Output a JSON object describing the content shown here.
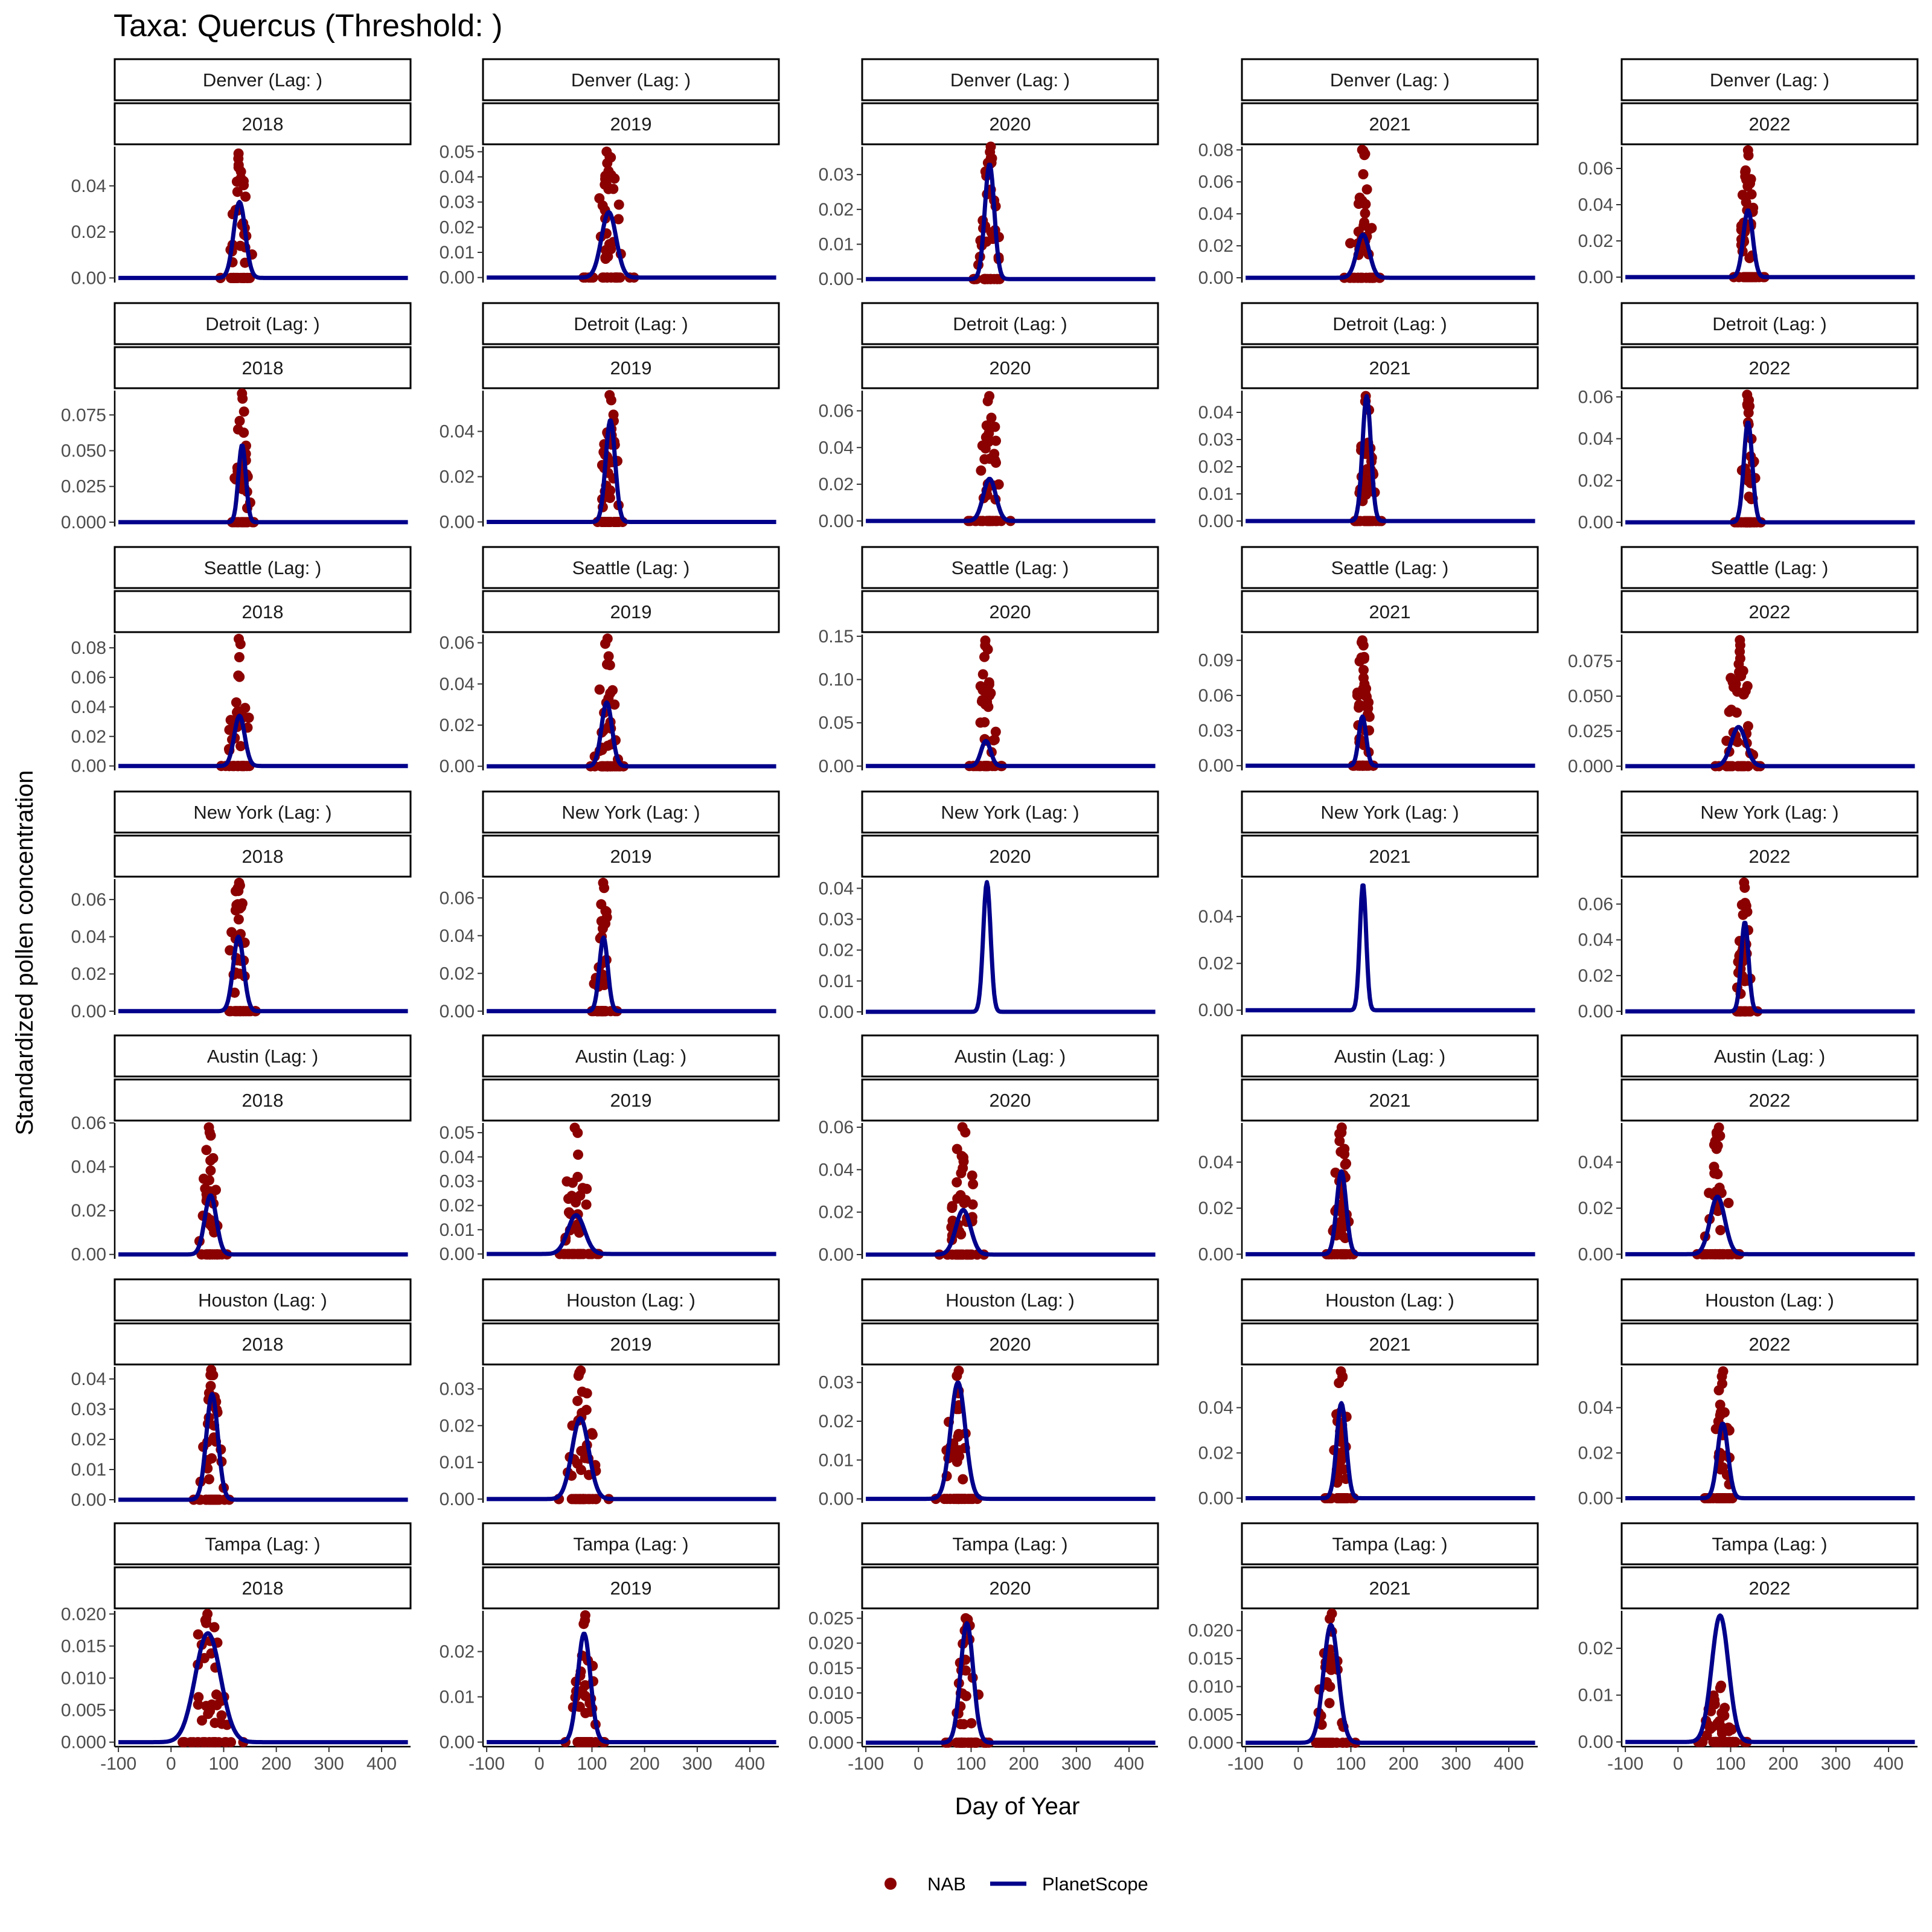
{
  "title": "Taxa: Quercus (Threshold:  )",
  "x_axis_title": "Day of Year",
  "y_axis_title": "Standardized pollen concentration",
  "legend": {
    "nab": "NAB",
    "planetscope": "PlanetScope"
  },
  "colors": {
    "nab": "#8b0000",
    "planetscope": "#00008b"
  },
  "chart_data": {
    "type": "scatter+line",
    "facet_rows": [
      "Denver",
      "Detroit",
      "Seattle",
      "New York",
      "Austin",
      "Houston",
      "Tampa"
    ],
    "facet_cols": [
      "2018",
      "2019",
      "2020",
      "2021",
      "2022"
    ],
    "strip_suffix": " (Lag: )",
    "x_ticks": [
      -100,
      0,
      100,
      200,
      300,
      400
    ],
    "x_tick_labels": [
      "-100",
      "0",
      "100",
      "200",
      "300",
      "400"
    ],
    "xlim": [
      -107,
      455
    ],
    "panels": [
      [
        {
          "peak": 130,
          "amp": 0.033,
          "width": 11,
          "nab_max": 0.054,
          "ticks": [
            0,
            0.02,
            0.04
          ],
          "tick_labels": [
            "0.00",
            "0.02",
            "0.04"
          ],
          "ylim": [
            -0.002,
            0.057
          ]
        },
        {
          "peak": 132,
          "amp": 0.026,
          "width": 14,
          "nab_max": 0.05,
          "ticks": [
            0,
            0.01,
            0.02,
            0.03,
            0.04,
            0.05
          ],
          "tick_labels": [
            "0.00",
            "0.01",
            "0.02",
            "0.03",
            "0.04",
            "0.05"
          ],
          "ylim": [
            -0.002,
            0.052
          ]
        },
        {
          "peak": 135,
          "amp": 0.033,
          "width": 9,
          "nab_max": 0.038,
          "ticks": [
            0,
            0.01,
            0.02,
            0.03
          ],
          "tick_labels": [
            "0.00",
            "0.01",
            "0.02",
            "0.03"
          ],
          "ylim": [
            -0.001,
            0.038
          ]
        },
        {
          "peak": 123,
          "amp": 0.027,
          "width": 12,
          "nab_max": 0.08,
          "ticks": [
            0,
            0.02,
            0.04,
            0.06,
            0.08
          ],
          "tick_labels": [
            "0.00",
            "0.02",
            "0.04",
            "0.06",
            "0.08"
          ],
          "ylim": [
            -0.003,
            0.082
          ]
        },
        {
          "peak": 133,
          "amp": 0.037,
          "width": 9,
          "nab_max": 0.07,
          "ticks": [
            0,
            0.02,
            0.04,
            0.06
          ],
          "tick_labels": [
            "0.00",
            "0.02",
            "0.04",
            "0.06"
          ],
          "ylim": [
            -0.003,
            0.072
          ]
        }
      ],
      [
        {
          "peak": 135,
          "amp": 0.054,
          "width": 7,
          "nab_max": 0.09,
          "ticks": [
            0,
            0.025,
            0.05,
            0.075
          ],
          "tick_labels": [
            "0.000",
            "0.025",
            "0.050",
            "0.075"
          ],
          "ylim": [
            -0.003,
            0.092
          ]
        },
        {
          "peak": 135,
          "amp": 0.045,
          "width": 9,
          "nab_max": 0.056,
          "ticks": [
            0,
            0.02,
            0.04
          ],
          "tick_labels": [
            "0.00",
            "0.02",
            "0.04"
          ],
          "ylim": [
            -0.002,
            0.058
          ]
        },
        {
          "peak": 135,
          "amp": 0.023,
          "width": 12,
          "nab_max": 0.068,
          "ticks": [
            0,
            0.02,
            0.04,
            0.06
          ],
          "tick_labels": [
            "0.00",
            "0.02",
            "0.04",
            "0.06"
          ],
          "ylim": [
            -0.003,
            0.071
          ]
        },
        {
          "peak": 130,
          "amp": 0.046,
          "width": 8,
          "nab_max": 0.046,
          "ticks": [
            0,
            0.01,
            0.02,
            0.03,
            0.04
          ],
          "tick_labels": [
            "0.00",
            "0.01",
            "0.02",
            "0.03",
            "0.04"
          ],
          "ylim": [
            -0.002,
            0.048
          ]
        },
        {
          "peak": 133,
          "amp": 0.048,
          "width": 8,
          "nab_max": 0.061,
          "ticks": [
            0,
            0.02,
            0.04,
            0.06
          ],
          "tick_labels": [
            "0.00",
            "0.02",
            "0.04",
            "0.06"
          ],
          "ylim": [
            -0.002,
            0.063
          ]
        }
      ],
      [
        {
          "peak": 130,
          "amp": 0.034,
          "width": 10,
          "nab_max": 0.086,
          "ticks": [
            0,
            0.02,
            0.04,
            0.06,
            0.08
          ],
          "tick_labels": [
            "0.00",
            "0.02",
            "0.04",
            "0.06",
            "0.08"
          ],
          "ylim": [
            -0.003,
            0.089
          ]
        },
        {
          "peak": 128,
          "amp": 0.031,
          "width": 10,
          "nab_max": 0.062,
          "ticks": [
            0,
            0.02,
            0.04,
            0.06
          ],
          "tick_labels": [
            "0.00",
            "0.02",
            "0.04",
            "0.06"
          ],
          "ylim": [
            -0.002,
            0.064
          ]
        },
        {
          "peak": 128,
          "amp": 0.029,
          "width": 9,
          "nab_max": 0.145,
          "ticks": [
            0,
            0.05,
            0.1,
            0.15
          ],
          "tick_labels": [
            "0.00",
            "0.05",
            "0.10",
            "0.15"
          ],
          "ylim": [
            -0.005,
            0.152
          ]
        },
        {
          "peak": 122,
          "amp": 0.042,
          "width": 7,
          "nab_max": 0.107,
          "ticks": [
            0,
            0.03,
            0.06,
            0.09
          ],
          "tick_labels": [
            "0.00",
            "0.03",
            "0.06",
            "0.09"
          ],
          "ylim": [
            -0.004,
            0.112
          ]
        },
        {
          "peak": 115,
          "amp": 0.028,
          "width": 14,
          "nab_max": 0.09,
          "ticks": [
            0,
            0.025,
            0.05,
            0.075
          ],
          "tick_labels": [
            "0.000",
            "0.025",
            "0.050",
            "0.075"
          ],
          "ylim": [
            -0.003,
            0.094
          ]
        }
      ],
      [
        {
          "peak": 128,
          "amp": 0.04,
          "width": 10,
          "nab_max": 0.069,
          "ticks": [
            0,
            0.02,
            0.04,
            0.06
          ],
          "tick_labels": [
            "0.00",
            "0.02",
            "0.04",
            "0.06"
          ],
          "ylim": [
            -0.002,
            0.071
          ]
        },
        {
          "peak": 122,
          "amp": 0.039,
          "width": 8,
          "nab_max": 0.068,
          "ticks": [
            0,
            0.02,
            0.04,
            0.06
          ],
          "tick_labels": [
            "0.00",
            "0.02",
            "0.04",
            "0.06"
          ],
          "ylim": [
            -0.002,
            0.07
          ]
        },
        {
          "peak": 130,
          "amp": 0.042,
          "width": 7,
          "nab_max": null,
          "ticks": [
            0,
            0.01,
            0.02,
            0.03,
            0.04
          ],
          "tick_labels": [
            "0.00",
            "0.01",
            "0.02",
            "0.03",
            "0.04"
          ],
          "ylim": [
            -0.001,
            0.043
          ]
        },
        {
          "peak": 123,
          "amp": 0.054,
          "width": 6,
          "nab_max": null,
          "ticks": [
            0,
            0.02,
            0.04
          ],
          "tick_labels": [
            "0.00",
            "0.02",
            "0.04"
          ],
          "ylim": [
            -0.002,
            0.056
          ]
        },
        {
          "peak": 127,
          "amp": 0.05,
          "width": 7,
          "nab_max": 0.072,
          "ticks": [
            0,
            0.02,
            0.04,
            0.06
          ],
          "tick_labels": [
            "0.00",
            "0.02",
            "0.04",
            "0.06"
          ],
          "ylim": [
            -0.002,
            0.074
          ]
        }
      ],
      [
        {
          "peak": 75,
          "amp": 0.027,
          "width": 11,
          "nab_max": 0.058,
          "ticks": [
            0,
            0.02,
            0.04,
            0.06
          ],
          "tick_labels": [
            "0.00",
            "0.02",
            "0.04",
            "0.06"
          ],
          "ylim": [
            -0.002,
            0.06
          ]
        },
        {
          "peak": 70,
          "amp": 0.016,
          "width": 16,
          "nab_max": 0.052,
          "ticks": [
            0,
            0.01,
            0.02,
            0.03,
            0.04,
            0.05
          ],
          "tick_labels": [
            "0.00",
            "0.01",
            "0.02",
            "0.03",
            "0.04",
            "0.05"
          ],
          "ylim": [
            -0.002,
            0.054
          ]
        },
        {
          "peak": 85,
          "amp": 0.021,
          "width": 14,
          "nab_max": 0.06,
          "ticks": [
            0,
            0.02,
            0.04,
            0.06
          ],
          "tick_labels": [
            "0.00",
            "0.02",
            "0.04",
            "0.06"
          ],
          "ylim": [
            -0.002,
            0.062
          ]
        },
        {
          "peak": 82,
          "amp": 0.036,
          "width": 9,
          "nab_max": 0.055,
          "ticks": [
            0,
            0.02,
            0.04
          ],
          "tick_labels": [
            "0.00",
            "0.02",
            "0.04"
          ],
          "ylim": [
            -0.002,
            0.057
          ]
        },
        {
          "peak": 75,
          "amp": 0.025,
          "width": 14,
          "nab_max": 0.055,
          "ticks": [
            0,
            0.02,
            0.04
          ],
          "tick_labels": [
            "0.00",
            "0.02",
            "0.04"
          ],
          "ylim": [
            -0.002,
            0.057
          ]
        }
      ],
      [
        {
          "peak": 78,
          "amp": 0.035,
          "width": 11,
          "nab_max": 0.043,
          "ticks": [
            0,
            0.01,
            0.02,
            0.03,
            0.04
          ],
          "tick_labels": [
            "0.00",
            "0.01",
            "0.02",
            "0.03",
            "0.04"
          ],
          "ylim": [
            -0.001,
            0.044
          ]
        },
        {
          "peak": 78,
          "amp": 0.022,
          "width": 16,
          "nab_max": 0.035,
          "ticks": [
            0,
            0.01,
            0.02,
            0.03
          ],
          "tick_labels": [
            "0.00",
            "0.01",
            "0.02",
            "0.03"
          ],
          "ylim": [
            -0.001,
            0.036
          ]
        },
        {
          "peak": 75,
          "amp": 0.03,
          "width": 14,
          "nab_max": 0.033,
          "ticks": [
            0,
            0.01,
            0.02,
            0.03
          ],
          "tick_labels": [
            "0.00",
            "0.01",
            "0.02",
            "0.03"
          ],
          "ylim": [
            -0.001,
            0.034
          ]
        },
        {
          "peak": 82,
          "amp": 0.042,
          "width": 9,
          "nab_max": 0.056,
          "ticks": [
            0,
            0.02,
            0.04
          ],
          "tick_labels": [
            "0.00",
            "0.02",
            "0.04"
          ],
          "ylim": [
            -0.002,
            0.058
          ]
        },
        {
          "peak": 85,
          "amp": 0.033,
          "width": 10,
          "nab_max": 0.056,
          "ticks": [
            0,
            0.02,
            0.04
          ],
          "tick_labels": [
            "0.00",
            "0.02",
            "0.04"
          ],
          "ylim": [
            -0.002,
            0.058
          ]
        }
      ],
      [
        {
          "peak": 70,
          "amp": 0.017,
          "width": 24,
          "nab_max": 0.02,
          "ticks": [
            0,
            0.005,
            0.01,
            0.015,
            0.02
          ],
          "tick_labels": [
            "0.000",
            "0.005",
            "0.010",
            "0.015",
            "0.020"
          ],
          "ylim": [
            -0.0007,
            0.0205
          ]
        },
        {
          "peak": 85,
          "amp": 0.024,
          "width": 12,
          "nab_max": 0.028,
          "ticks": [
            0,
            0.01,
            0.02
          ],
          "tick_labels": [
            "0.00",
            "0.01",
            "0.02"
          ],
          "ylim": [
            -0.001,
            0.029
          ]
        },
        {
          "peak": 92,
          "amp": 0.024,
          "width": 12,
          "nab_max": 0.025,
          "ticks": [
            0,
            0.005,
            0.01,
            0.015,
            0.02,
            0.025
          ],
          "tick_labels": [
            "0.000",
            "0.005",
            "0.010",
            "0.015",
            "0.020",
            "0.025"
          ],
          "ylim": [
            -0.0008,
            0.0265
          ]
        },
        {
          "peak": 62,
          "amp": 0.021,
          "width": 14,
          "nab_max": 0.023,
          "ticks": [
            0,
            0.005,
            0.01,
            0.015,
            0.02
          ],
          "tick_labels": [
            "0.000",
            "0.005",
            "0.010",
            "0.015",
            "0.020"
          ],
          "ylim": [
            -0.0007,
            0.0235
          ]
        },
        {
          "peak": 80,
          "amp": 0.027,
          "width": 16,
          "nab_max": 0.012,
          "ticks": [
            0,
            0.01,
            0.02
          ],
          "tick_labels": [
            "0.00",
            "0.01",
            "0.02"
          ],
          "ylim": [
            -0.001,
            0.028
          ]
        }
      ]
    ]
  }
}
